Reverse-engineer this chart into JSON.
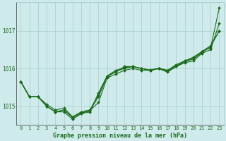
{
  "title": "Graphe pression niveau de la mer (hPa)",
  "bg_color": "#ceeaea",
  "grid_color": "#aacccc",
  "line_color": "#1a6b1a",
  "marker_color": "#1a6b1a",
  "ylabel_ticks": [
    1015,
    1016,
    1017
  ],
  "xlim": [
    -0.5,
    23.5
  ],
  "ylim": [
    1014.5,
    1017.75
  ],
  "x": [
    0,
    1,
    2,
    3,
    4,
    5,
    6,
    7,
    8,
    9,
    10,
    11,
    12,
    13,
    14,
    15,
    16,
    17,
    18,
    19,
    20,
    21,
    22,
    23
  ],
  "series": [
    [
      1015.65,
      1015.25,
      1015.25,
      1015.0,
      1014.85,
      1014.85,
      1014.65,
      1014.8,
      1014.85,
      1015.35,
      1015.8,
      1015.9,
      1016.05,
      1016.05,
      1016.0,
      1015.95,
      1016.0,
      1015.95,
      1016.1,
      1016.2,
      1016.3,
      1016.45,
      1016.55,
      1017.6
    ],
    [
      1015.65,
      1015.25,
      1015.25,
      1015.0,
      1014.85,
      1014.9,
      1014.7,
      1014.82,
      1014.88,
      1015.1,
      1015.75,
      1015.85,
      1015.95,
      1016.0,
      1015.95,
      1015.95,
      1016.0,
      1015.9,
      1016.05,
      1016.15,
      1016.2,
      1016.4,
      1016.5,
      1017.2
    ],
    [
      1015.65,
      1015.25,
      1015.25,
      1015.0,
      1014.85,
      1014.9,
      1014.7,
      1014.82,
      1014.88,
      1015.25,
      1015.78,
      1015.92,
      1016.0,
      1016.05,
      1016.0,
      1015.95,
      1016.0,
      1015.93,
      1016.05,
      1016.18,
      1016.25,
      1016.42,
      1016.58,
      1017.0
    ],
    [
      1015.65,
      1015.25,
      1015.25,
      1015.05,
      1014.9,
      1014.95,
      1014.72,
      1014.85,
      1014.9,
      1015.3,
      1015.8,
      1015.95,
      1016.02,
      1016.05,
      1016.0,
      1015.96,
      1016.01,
      1015.95,
      1016.07,
      1016.2,
      1016.27,
      1016.45,
      1016.6,
      1017.0
    ]
  ]
}
